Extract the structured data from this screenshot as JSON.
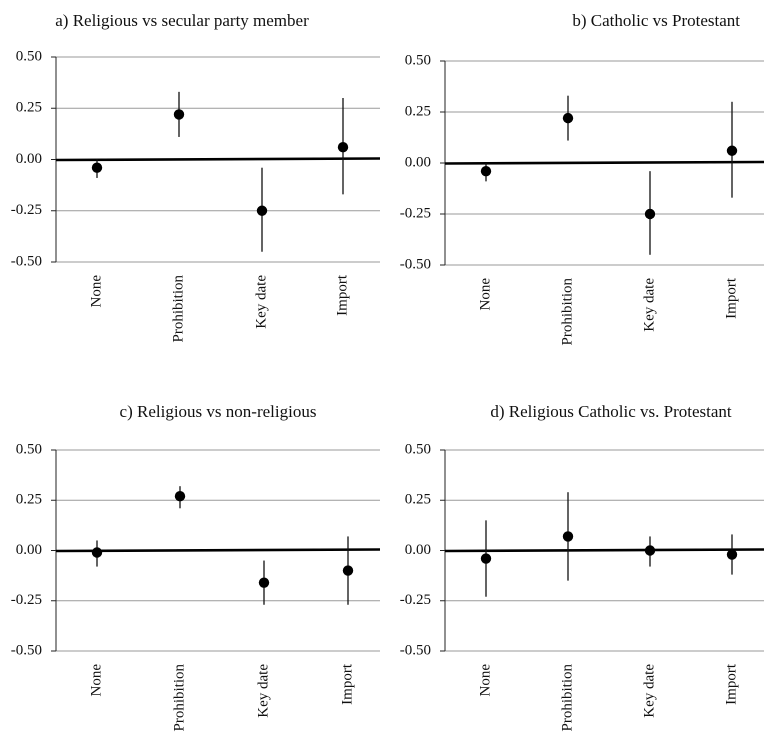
{
  "chart_data": [
    {
      "type": "scatter",
      "title": "a) Religious vs secular party member",
      "categories": [
        "None",
        "Prohibition",
        "Key date",
        "Import"
      ],
      "ylim": [
        -0.5,
        0.5
      ],
      "yticks": [
        "0.50",
        "0.25",
        "0.00",
        "-0.25",
        "-0.50"
      ],
      "grid": true,
      "series": [
        {
          "values": [
            -0.04,
            0.22,
            -0.25,
            0.06
          ],
          "lower": [
            -0.09,
            0.11,
            -0.45,
            -0.17
          ],
          "upper": [
            0.0,
            0.33,
            -0.04,
            0.3
          ]
        }
      ]
    },
    {
      "type": "scatter",
      "title": "b) Catholic vs Protestant",
      "categories": [
        "None",
        "Prohibition",
        "Key date",
        "Import"
      ],
      "ylim": [
        -0.5,
        0.5
      ],
      "yticks": [
        "0.50",
        "0.25",
        "0.00",
        "-0.25",
        "-0.50"
      ],
      "grid": true,
      "series": [
        {
          "values": [
            -0.04,
            0.22,
            -0.25,
            0.06
          ],
          "lower": [
            -0.09,
            0.11,
            -0.45,
            -0.17
          ],
          "upper": [
            0.0,
            0.33,
            -0.04,
            0.3
          ]
        }
      ]
    },
    {
      "type": "scatter",
      "title": "c) Religious vs non-religious",
      "categories": [
        "None",
        "Prohibition",
        "Key date",
        "Import"
      ],
      "ylim": [
        -0.5,
        0.5
      ],
      "yticks": [
        "0.50",
        "0.25",
        "0.00",
        "-0.25",
        "-0.50"
      ],
      "grid": true,
      "series": [
        {
          "values": [
            -0.01,
            0.27,
            -0.16,
            -0.1
          ],
          "lower": [
            -0.08,
            0.21,
            -0.27,
            -0.27
          ],
          "upper": [
            0.05,
            0.32,
            -0.05,
            0.07
          ]
        }
      ]
    },
    {
      "type": "scatter",
      "title": "d) Religious Catholic vs. Protestant",
      "categories": [
        "None",
        "Prohibition",
        "Key date",
        "Import"
      ],
      "ylim": [
        -0.5,
        0.5
      ],
      "yticks": [
        "0.50",
        "0.25",
        "0.00",
        "-0.25",
        "-0.50"
      ],
      "grid": true,
      "series": [
        {
          "values": [
            -0.04,
            0.07,
            0.0,
            -0.02
          ],
          "lower": [
            -0.23,
            -0.15,
            -0.08,
            -0.12
          ],
          "upper": [
            0.15,
            0.29,
            0.07,
            0.08
          ]
        }
      ]
    }
  ]
}
